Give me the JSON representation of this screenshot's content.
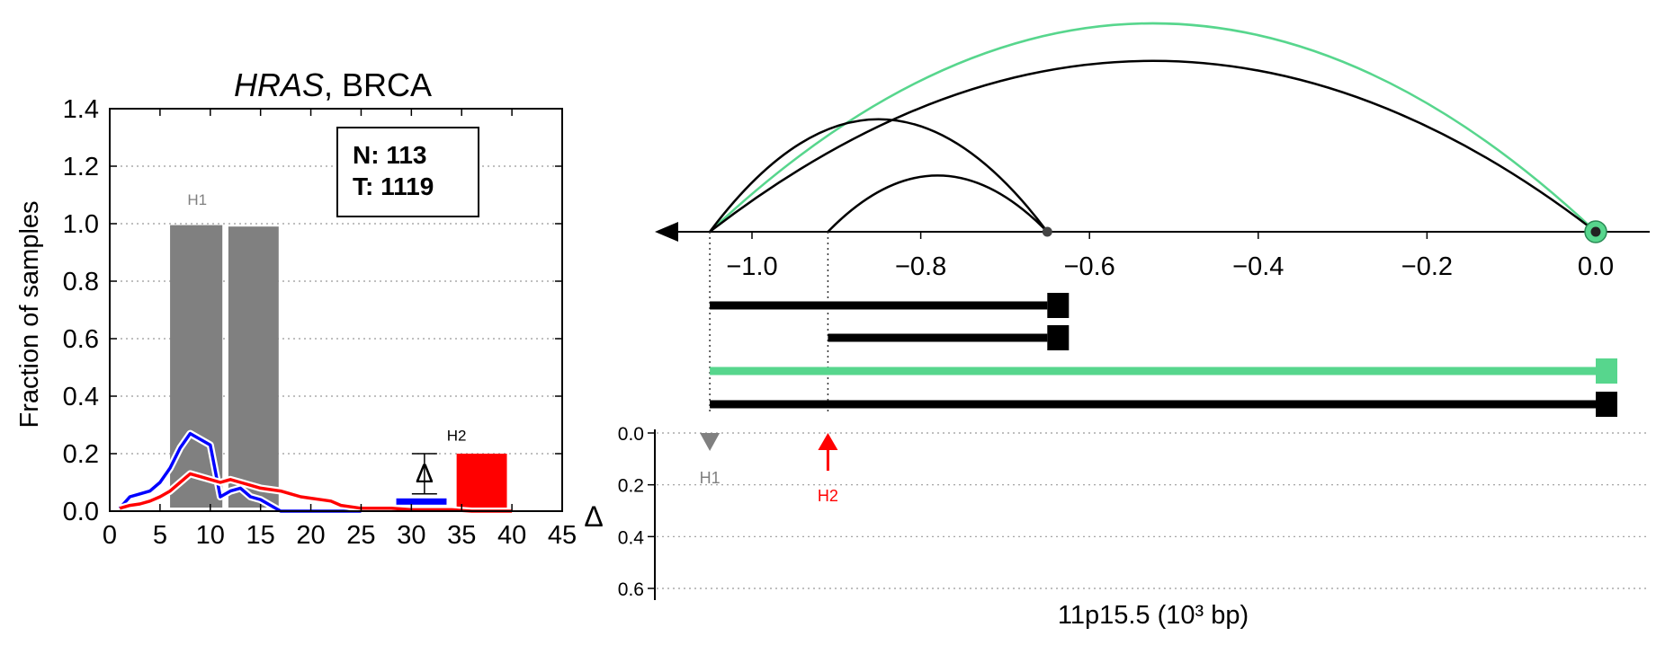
{
  "chart_data": [
    {
      "type": "bar",
      "title_gene": "HRAS",
      "title_rest": ", BRCA",
      "ylabel": "Fraction of samples",
      "xlabel": "",
      "xlim": [
        0,
        45
      ],
      "ylim": [
        0,
        1.4
      ],
      "xticks": [
        "0",
        "5",
        "10",
        "15",
        "20",
        "25",
        "30",
        "35",
        "40",
        "45"
      ],
      "yticks": [
        "0.0",
        "0.2",
        "0.4",
        "0.6",
        "0.8",
        "1.0",
        "1.2",
        "1.4"
      ],
      "grid": "horizontal dotted",
      "counts_box": {
        "n_label": "N: 113",
        "t_label": "T: 1119"
      },
      "bars": [
        {
          "x0": 6,
          "x1": 11.2,
          "value": 0.995,
          "color": "#808080"
        },
        {
          "x0": 11.8,
          "x1": 16.8,
          "value": 0.99,
          "color": "#808080"
        },
        {
          "x0": 34.5,
          "x1": 39.5,
          "value": 0.2,
          "color": "#ff0000"
        }
      ],
      "bar_labels": [
        {
          "text": "H1",
          "color": "#808080"
        },
        {
          "text": "H2",
          "color": "#000000"
        }
      ],
      "delta_marker": {
        "label": "Δ",
        "x0": 28.5,
        "x1": 33.5,
        "value": 0.035,
        "err_low": 0.06,
        "err_high": 0.2,
        "color": "#0000ff"
      },
      "series": [
        {
          "color": "#0000ff",
          "x": [
            1,
            2,
            3,
            4,
            5,
            6,
            7,
            8,
            9,
            10,
            11,
            12,
            13,
            14,
            15,
            16,
            17,
            18,
            19,
            20,
            22,
            24,
            25
          ],
          "y": [
            0.01,
            0.05,
            0.06,
            0.07,
            0.1,
            0.15,
            0.22,
            0.27,
            0.25,
            0.23,
            0.05,
            0.07,
            0.08,
            0.05,
            0.04,
            0.02,
            0.0,
            0.0,
            0.0,
            0.0,
            0.0,
            0.0,
            0.0
          ]
        },
        {
          "color": "#ff0000",
          "x": [
            1,
            2,
            3,
            4,
            5,
            6,
            7,
            8,
            9,
            10,
            11,
            12,
            13,
            14,
            15,
            16,
            17,
            18,
            19,
            20,
            21,
            22,
            23,
            24,
            25,
            26,
            28,
            30,
            32,
            34,
            36,
            38,
            40
          ],
          "y": [
            0.01,
            0.02,
            0.025,
            0.035,
            0.05,
            0.07,
            0.1,
            0.13,
            0.12,
            0.11,
            0.1,
            0.11,
            0.1,
            0.09,
            0.08,
            0.075,
            0.07,
            0.06,
            0.05,
            0.045,
            0.04,
            0.035,
            0.02,
            0.015,
            0.01,
            0.01,
            0.01,
            0.005,
            0.005,
            0.005,
            0.0,
            0.0,
            0.0
          ]
        }
      ]
    },
    {
      "type": "arc-diagram",
      "xlabel": "11p15.5 (10³ bp)",
      "xlim": [
        -1.12,
        0.1
      ],
      "xticks": [
        "−1.0",
        "−0.8",
        "−0.6",
        "−0.4",
        "−0.2",
        "0.0"
      ],
      "xtick_values": [
        -1.0,
        -0.8,
        -0.6,
        -0.4,
        -0.2,
        0.0
      ],
      "arcs": [
        {
          "start": -1.05,
          "end": 0.0,
          "height": 1.0,
          "color": "#57d68d"
        },
        {
          "start": -1.05,
          "end": 0.0,
          "height": 0.82,
          "color": "#000000"
        },
        {
          "start": -1.05,
          "end": -0.65,
          "height": 0.54,
          "color": "#000000"
        },
        {
          "start": -0.91,
          "end": -0.65,
          "height": 0.27,
          "color": "#000000"
        }
      ],
      "isoforms": [
        {
          "start": -1.05,
          "end": -0.65,
          "color": "#000000"
        },
        {
          "start": -0.91,
          "end": -0.65,
          "color": "#000000"
        },
        {
          "start": -1.05,
          "end": 0.0,
          "color": "#57d68d"
        },
        {
          "start": -1.05,
          "end": 0.0,
          "color": "#000000"
        }
      ],
      "delta_axis": {
        "label": "Δ",
        "yticks": [
          "0.0",
          "0.2",
          "0.4",
          "0.6"
        ],
        "ytick_values": [
          0,
          0.2,
          0.4,
          0.6
        ],
        "markers": [
          {
            "label": "H1",
            "position": -1.05,
            "value": 0.0,
            "color": "#808080",
            "shape": "triangle-down"
          },
          {
            "label": "H2",
            "position": -0.91,
            "value": 0.0,
            "color": "#ff0000",
            "shape": "arrow-up"
          }
        ]
      }
    }
  ]
}
